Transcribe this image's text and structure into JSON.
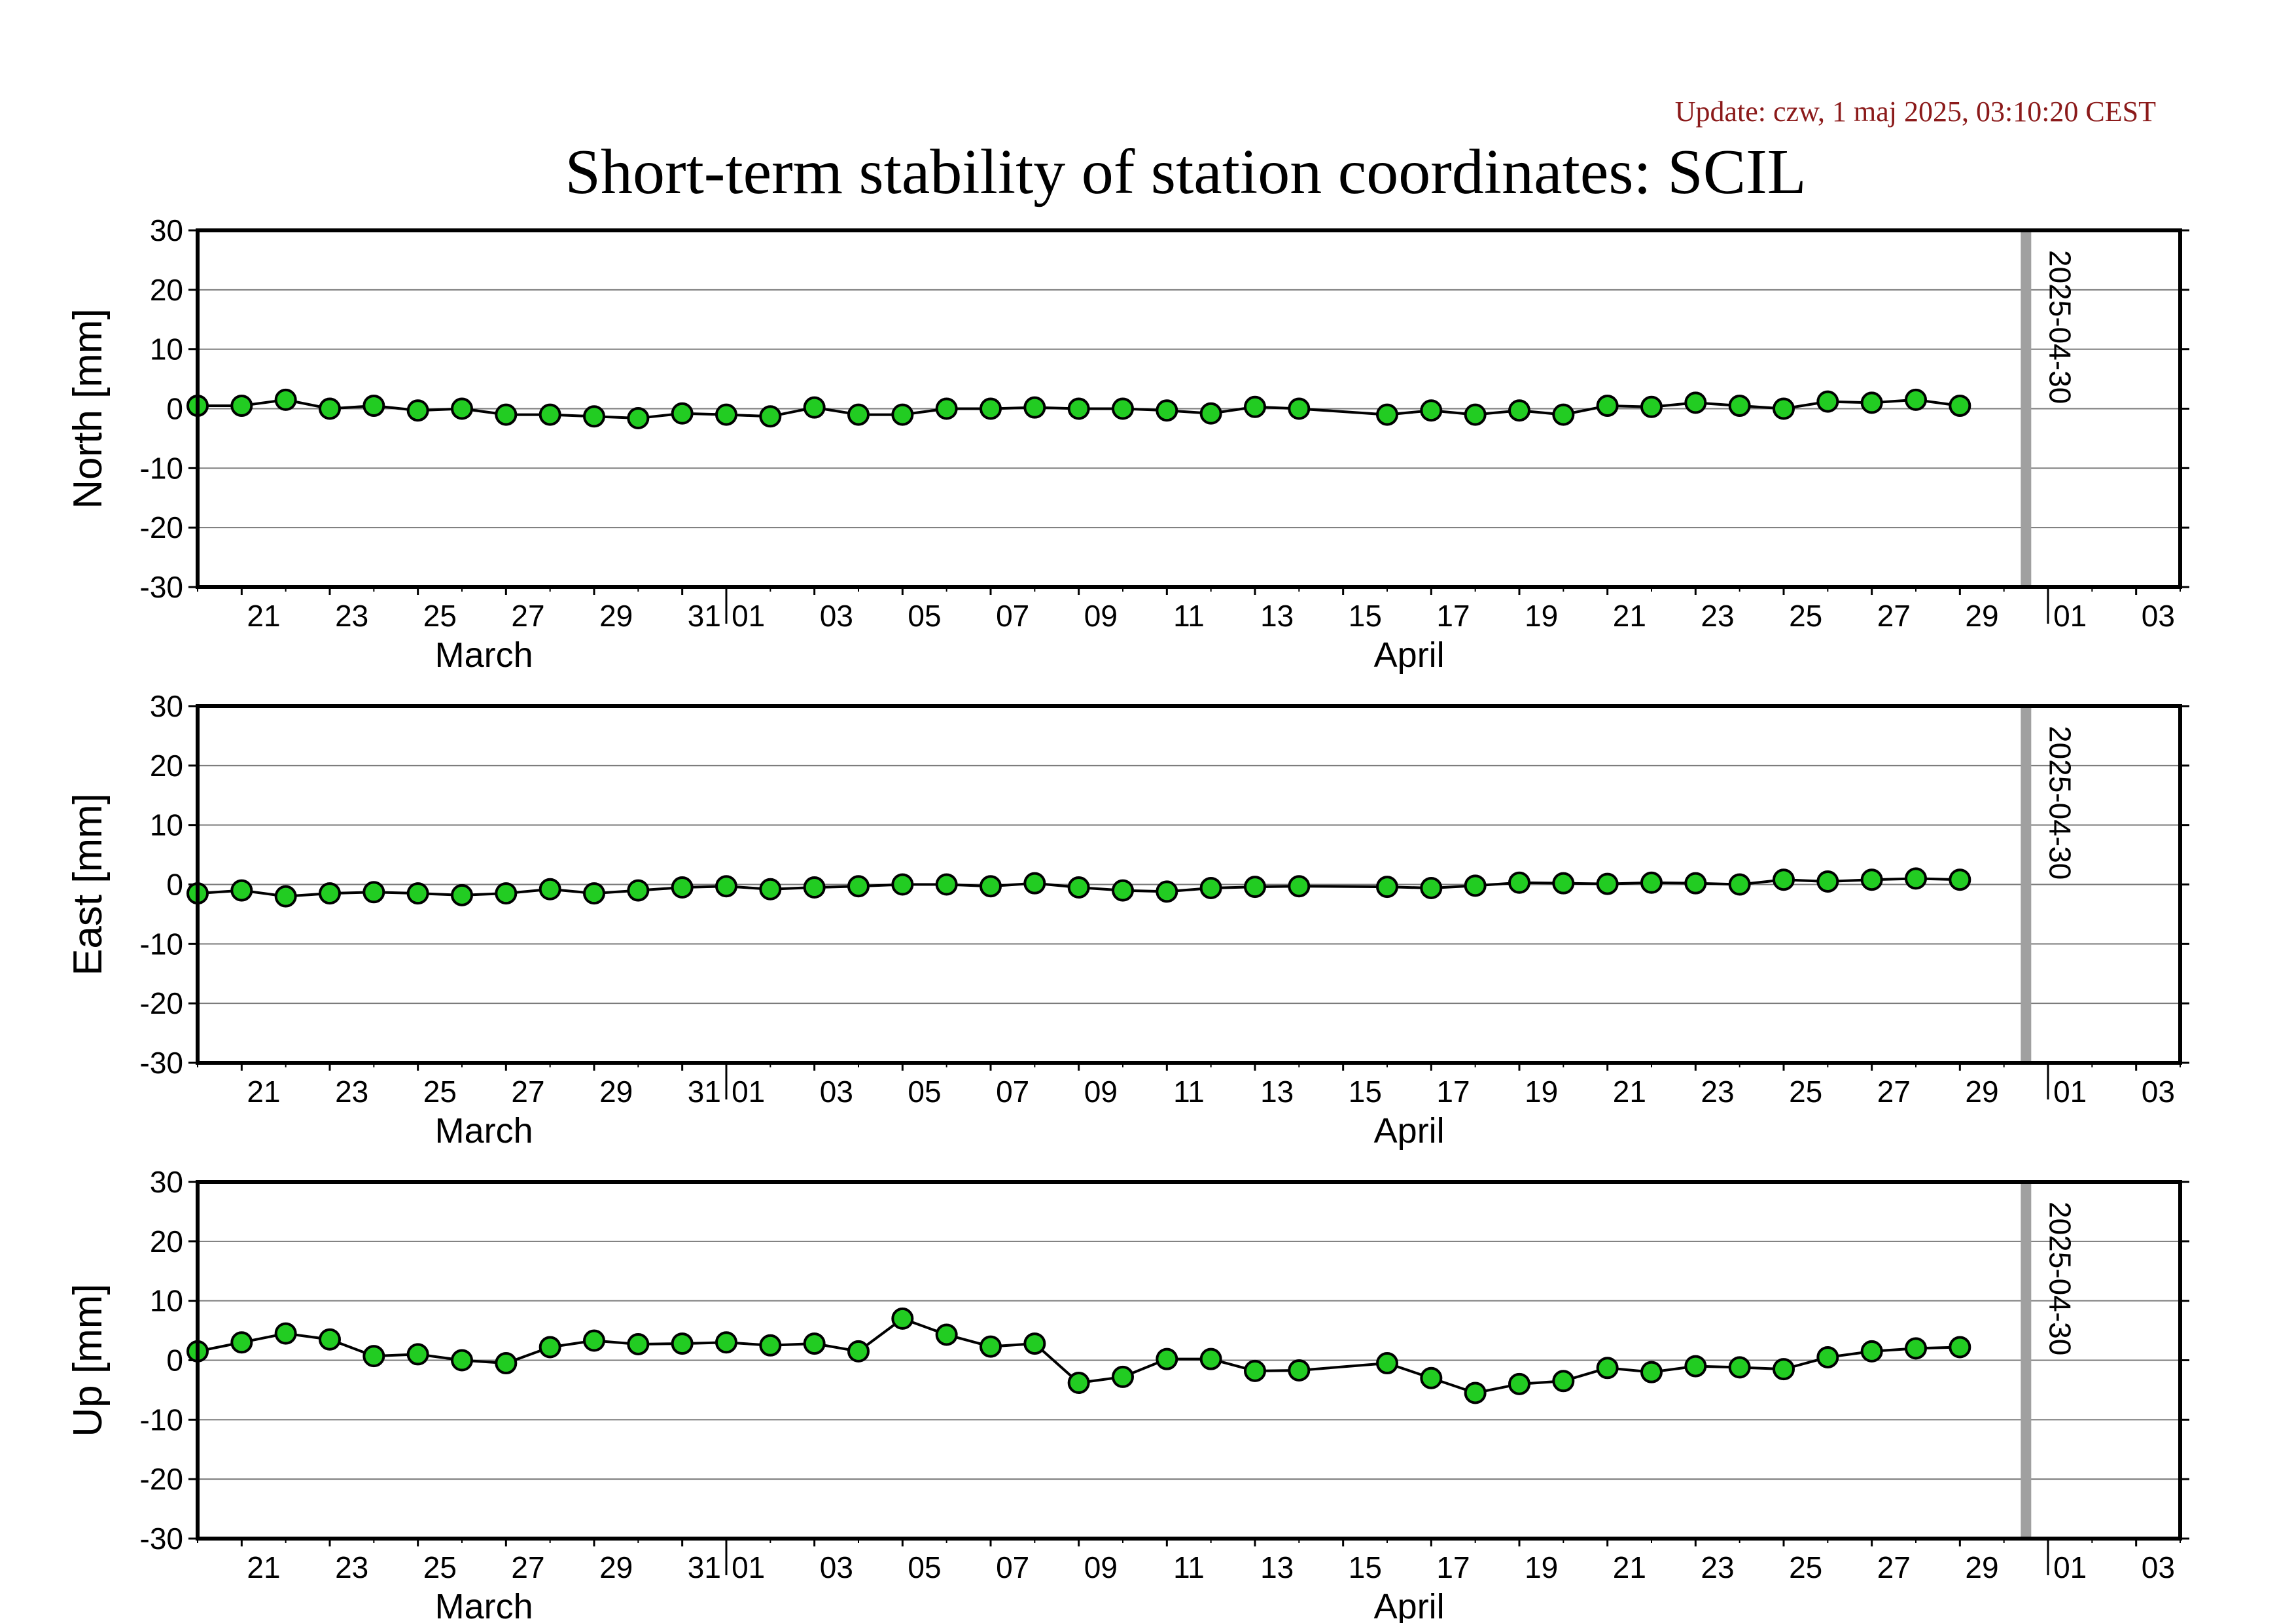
{
  "header": {
    "update_text": "Update: czw, 1 maj 2025, 03:10:20 CEST",
    "title": "Short-term stability of station coordinates: SCIL"
  },
  "chart_data": {
    "type": "line",
    "x_range": [
      "2025-03-20",
      "2025-05-04"
    ],
    "x_tick_labels": [
      "21",
      "23",
      "25",
      "27",
      "29",
      "31",
      "01",
      "03",
      "05",
      "07",
      "09",
      "11",
      "13",
      "15",
      "17",
      "19",
      "21",
      "23",
      "25",
      "27",
      "29",
      "01",
      "03"
    ],
    "month_labels": [
      "March",
      "April"
    ],
    "marker": {
      "date": "2025-04-30",
      "label": "2025-04-30"
    },
    "y_range": [
      -30,
      30
    ],
    "y_ticks": [
      "30",
      "20",
      "10",
      "0",
      "-10",
      "-20",
      "-30"
    ],
    "grid": true,
    "marker_color": "#22cc22",
    "line_color": "#000000",
    "panels": [
      {
        "ylabel": "North [mm]",
        "points": [
          [
            "2025-03-20",
            0.5
          ],
          [
            "2025-03-21",
            0.5
          ],
          [
            "2025-03-22",
            1.5
          ],
          [
            "2025-03-23",
            0.0
          ],
          [
            "2025-03-24",
            0.5
          ],
          [
            "2025-03-25",
            -0.3
          ],
          [
            "2025-03-26",
            0.0
          ],
          [
            "2025-03-27",
            -1.0
          ],
          [
            "2025-03-28",
            -1.0
          ],
          [
            "2025-03-29",
            -1.3
          ],
          [
            "2025-03-30",
            -1.6
          ],
          [
            "2025-03-31",
            -0.8
          ],
          [
            "2025-04-01",
            -1.0
          ],
          [
            "2025-04-02",
            -1.3
          ],
          [
            "2025-04-03",
            0.2
          ],
          [
            "2025-04-04",
            -1.0
          ],
          [
            "2025-04-05",
            -1.0
          ],
          [
            "2025-04-06",
            0.0
          ],
          [
            "2025-04-07",
            0.0
          ],
          [
            "2025-04-08",
            0.2
          ],
          [
            "2025-04-09",
            0.0
          ],
          [
            "2025-04-10",
            0.0
          ],
          [
            "2025-04-11",
            -0.3
          ],
          [
            "2025-04-12",
            -0.8
          ],
          [
            "2025-04-13",
            0.3
          ],
          [
            "2025-04-14",
            0.0
          ],
          [
            "2025-04-16",
            -1.0
          ],
          [
            "2025-04-17",
            -0.3
          ],
          [
            "2025-04-18",
            -1.0
          ],
          [
            "2025-04-19",
            -0.3
          ],
          [
            "2025-04-20",
            -1.0
          ],
          [
            "2025-04-21",
            0.5
          ],
          [
            "2025-04-22",
            0.3
          ],
          [
            "2025-04-23",
            1.0
          ],
          [
            "2025-04-24",
            0.5
          ],
          [
            "2025-04-25",
            0.0
          ],
          [
            "2025-04-26",
            1.2
          ],
          [
            "2025-04-27",
            1.0
          ],
          [
            "2025-04-28",
            1.5
          ],
          [
            "2025-04-29",
            0.5
          ]
        ]
      },
      {
        "ylabel": "East [mm]",
        "points": [
          [
            "2025-03-20",
            -1.5
          ],
          [
            "2025-03-21",
            -1.0
          ],
          [
            "2025-03-22",
            -2.0
          ],
          [
            "2025-03-23",
            -1.5
          ],
          [
            "2025-03-24",
            -1.3
          ],
          [
            "2025-03-25",
            -1.5
          ],
          [
            "2025-03-26",
            -1.8
          ],
          [
            "2025-03-27",
            -1.5
          ],
          [
            "2025-03-28",
            -0.8
          ],
          [
            "2025-03-29",
            -1.5
          ],
          [
            "2025-03-30",
            -1.0
          ],
          [
            "2025-03-31",
            -0.5
          ],
          [
            "2025-04-01",
            -0.3
          ],
          [
            "2025-04-02",
            -0.8
          ],
          [
            "2025-04-03",
            -0.5
          ],
          [
            "2025-04-04",
            -0.3
          ],
          [
            "2025-04-05",
            0.0
          ],
          [
            "2025-04-06",
            0.0
          ],
          [
            "2025-04-07",
            -0.3
          ],
          [
            "2025-04-08",
            0.2
          ],
          [
            "2025-04-09",
            -0.5
          ],
          [
            "2025-04-10",
            -1.0
          ],
          [
            "2025-04-11",
            -1.2
          ],
          [
            "2025-04-12",
            -0.6
          ],
          [
            "2025-04-13",
            -0.4
          ],
          [
            "2025-04-14",
            -0.3
          ],
          [
            "2025-04-16",
            -0.4
          ],
          [
            "2025-04-17",
            -0.6
          ],
          [
            "2025-04-18",
            -0.2
          ],
          [
            "2025-04-19",
            0.3
          ],
          [
            "2025-04-20",
            0.2
          ],
          [
            "2025-04-21",
            0.1
          ],
          [
            "2025-04-22",
            0.3
          ],
          [
            "2025-04-23",
            0.2
          ],
          [
            "2025-04-24",
            0.0
          ],
          [
            "2025-04-25",
            0.8
          ],
          [
            "2025-04-26",
            0.5
          ],
          [
            "2025-04-27",
            0.8
          ],
          [
            "2025-04-28",
            1.0
          ],
          [
            "2025-04-29",
            0.8
          ]
        ]
      },
      {
        "ylabel": "Up [mm]",
        "points": [
          [
            "2025-03-20",
            1.5
          ],
          [
            "2025-03-21",
            3.0
          ],
          [
            "2025-03-22",
            4.5
          ],
          [
            "2025-03-23",
            3.5
          ],
          [
            "2025-03-24",
            0.7
          ],
          [
            "2025-03-25",
            1.0
          ],
          [
            "2025-03-26",
            0.0
          ],
          [
            "2025-03-27",
            -0.5
          ],
          [
            "2025-03-28",
            2.2
          ],
          [
            "2025-03-29",
            3.3
          ],
          [
            "2025-03-30",
            2.7
          ],
          [
            "2025-03-31",
            2.8
          ],
          [
            "2025-04-01",
            3.0
          ],
          [
            "2025-04-02",
            2.5
          ],
          [
            "2025-04-03",
            2.8
          ],
          [
            "2025-04-04",
            1.5
          ],
          [
            "2025-04-05",
            7.0
          ],
          [
            "2025-04-06",
            4.3
          ],
          [
            "2025-04-07",
            2.3
          ],
          [
            "2025-04-08",
            2.8
          ],
          [
            "2025-04-09",
            -3.8
          ],
          [
            "2025-04-10",
            -2.8
          ],
          [
            "2025-04-11",
            0.2
          ],
          [
            "2025-04-12",
            0.2
          ],
          [
            "2025-04-13",
            -1.8
          ],
          [
            "2025-04-14",
            -1.7
          ],
          [
            "2025-04-16",
            -0.5
          ],
          [
            "2025-04-17",
            -3.0
          ],
          [
            "2025-04-18",
            -5.5
          ],
          [
            "2025-04-19",
            -4.0
          ],
          [
            "2025-04-20",
            -3.5
          ],
          [
            "2025-04-21",
            -1.3
          ],
          [
            "2025-04-22",
            -2.0
          ],
          [
            "2025-04-23",
            -1.0
          ],
          [
            "2025-04-24",
            -1.2
          ],
          [
            "2025-04-25",
            -1.5
          ],
          [
            "2025-04-26",
            0.5
          ],
          [
            "2025-04-27",
            1.5
          ],
          [
            "2025-04-28",
            2.0
          ],
          [
            "2025-04-29",
            2.2
          ]
        ]
      }
    ]
  }
}
